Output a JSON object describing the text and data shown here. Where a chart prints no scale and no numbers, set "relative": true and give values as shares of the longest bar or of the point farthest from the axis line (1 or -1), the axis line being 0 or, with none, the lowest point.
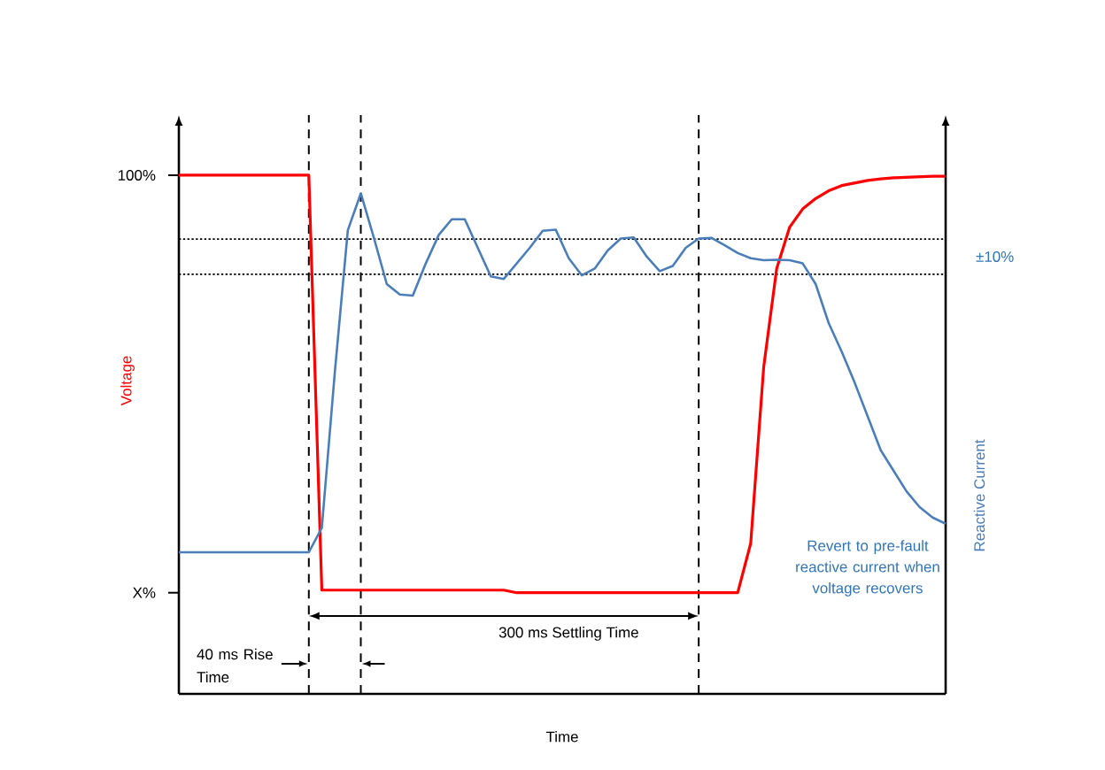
{
  "chart_data": {
    "type": "line",
    "relative": true,
    "grid": "x",
    "xlabel": "Time",
    "ylabel": "Voltage",
    "y2label": "Reactive Current",
    "categories": [
      null,
      null,
      null,
      null,
      null,
      null,
      null,
      null,
      null,
      null,
      null,
      null,
      null,
      null,
      null,
      null,
      null,
      null,
      null,
      null,
      null,
      null,
      null,
      null,
      null,
      null,
      null,
      null,
      null,
      null,
      null,
      null,
      null,
      null,
      null,
      null,
      null,
      null,
      null,
      null,
      null,
      null,
      null,
      null,
      null,
      null,
      null,
      null,
      null,
      null,
      null,
      null,
      null,
      null,
      null,
      null,
      null,
      null,
      null,
      null
    ],
    "series": [
      {
        "color": "#ff0000",
        "values": [
          1.0,
          1.0,
          1.0,
          1.0,
          1.0,
          1.0,
          1.0,
          1.0,
          1.0,
          1.0,
          1.0,
          0.2,
          0.2,
          0.2,
          0.2,
          0.2,
          0.2,
          0.2,
          0.2,
          0.2,
          0.2,
          0.2,
          0.2,
          0.2,
          0.2,
          0.2,
          0.195,
          0.195,
          0.195,
          0.195,
          0.195,
          0.195,
          0.195,
          0.195,
          0.195,
          0.195,
          0.195,
          0.195,
          0.195,
          0.195,
          0.195,
          0.195,
          0.195,
          0.195,
          0.29,
          0.63,
          0.82,
          0.9,
          0.935,
          0.955,
          0.97,
          0.98,
          0.985,
          0.99,
          0.993,
          0.995,
          0.996,
          0.997,
          0.998,
          0.998
        ]
      },
      {
        "color": "#4a7ebb",
        "values": [
          0.273,
          0.273,
          0.273,
          0.273,
          0.273,
          0.273,
          0.273,
          0.273,
          0.273,
          0.273,
          0.273,
          0.32,
          0.62,
          0.894,
          0.965,
          0.88,
          0.79,
          0.77,
          0.768,
          0.83,
          0.885,
          0.915,
          0.915,
          0.86,
          0.805,
          0.8,
          0.83,
          0.86,
          0.893,
          0.895,
          0.84,
          0.807,
          0.82,
          0.855,
          0.878,
          0.88,
          0.843,
          0.815,
          0.825,
          0.86,
          0.878,
          0.879,
          0.865,
          0.85,
          0.84,
          0.836,
          0.837,
          0.836,
          0.83,
          0.79,
          0.715,
          0.66,
          0.6,
          0.535,
          0.47,
          0.43,
          0.39,
          0.36,
          0.34,
          0.328
        ]
      }
    ],
    "ref_lines": [
      {
        "axis": "y",
        "value": 0.877,
        "line_style": "dotted"
      },
      {
        "axis": "y",
        "value": 0.809,
        "line_style": "dotted"
      }
    ],
    "annotations": [
      "100%",
      "X%",
      "40 ms Rise Time",
      "300 ms Settling Time",
      "Revert to pre-fault reactive current when voltage recovers",
      "±10%"
    ]
  }
}
